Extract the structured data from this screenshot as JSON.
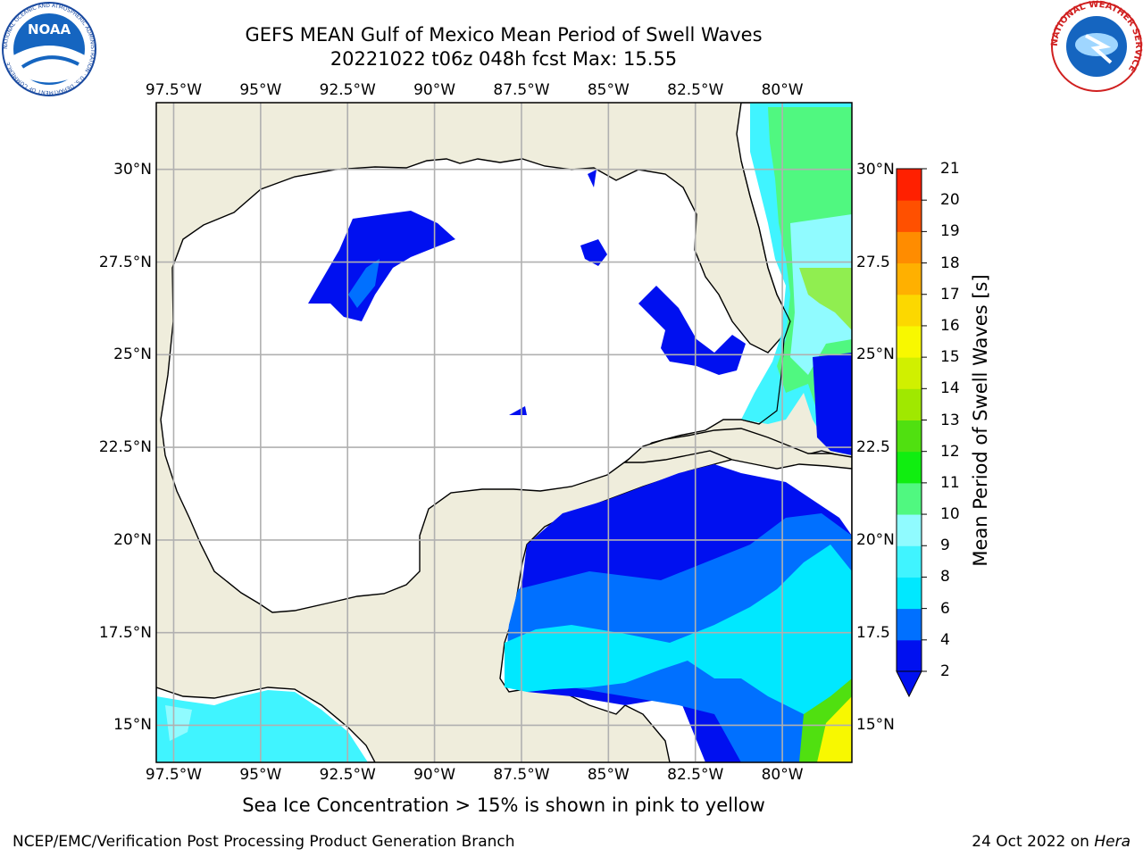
{
  "title": {
    "line1": "GEFS MEAN Gulf of Mexico Mean Period of Swell Waves",
    "line2": "20221022 t06z 048h fcst   Max: 15.55"
  },
  "map": {
    "lon_labels": [
      "97.5°W",
      "95°W",
      "92.5°W",
      "90°W",
      "87.5°W",
      "85°W",
      "82.5°W",
      "80°W"
    ],
    "lat_labels_left": [
      "30°N",
      "27.5°N",
      "25°N",
      "22.5°N",
      "20°N",
      "17.5°N",
      "15°N"
    ],
    "lat_labels_right": [
      "30°N",
      "27.5",
      "25°N",
      "22.5",
      "20°N",
      "17.5",
      "15°N"
    ],
    "land_color": "#efeddc",
    "ocean_color": "#ffffff",
    "grid_color": "#b0b0b0",
    "lon_range": [
      -98,
      -78
    ],
    "lat_range": [
      14,
      31.8
    ]
  },
  "colorbar": {
    "label": "Mean Period of Swell Waves [s]",
    "ticks": [
      "2",
      "4",
      "6",
      "8",
      "9",
      "10",
      "11",
      "12",
      "13",
      "14",
      "15",
      "16",
      "17",
      "18",
      "19",
      "20",
      "21"
    ],
    "colors": [
      "#0010f0",
      "#0070ff",
      "#00e8ff",
      "#40f4ff",
      "#90fbff",
      "#50f880",
      "#10ee10",
      "#50e010",
      "#a0e800",
      "#d0f000",
      "#f8f800",
      "#fcd800",
      "#ffb000",
      "#ff8c00",
      "#ff5000",
      "#ff2000"
    ],
    "under_color": "#0010f0"
  },
  "footnote": "Sea Ice Concentration > 15% is shown in pink to yellow",
  "credit": "NCEP/EMC/Verification Post Processing Product Generation Branch",
  "date_text": "24 Oct 2022 on ",
  "date_host": "Hera",
  "logos": {
    "noaa_text": "NOAA",
    "noaa_ring": "NATIONAL OCEANIC AND ATMOSPHERIC ADMINISTRATION · U.S. DEPARTMENT OF COMMERCE",
    "nws_ring": "NATIONAL WEATHER SERVICE"
  }
}
